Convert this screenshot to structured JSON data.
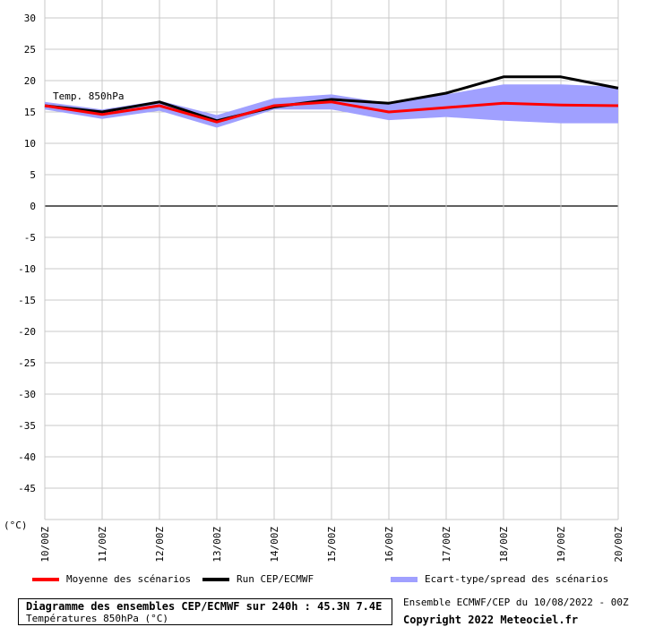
{
  "chart_data": {
    "type": "line",
    "annotation": "Temp. 850hPa",
    "unit_label": "(°C)",
    "y_ticks": [
      30,
      25,
      20,
      15,
      10,
      5,
      0,
      -5,
      -10,
      -15,
      -20,
      -25,
      -30,
      -35,
      -40,
      -45
    ],
    "ylim": [
      -50,
      30
    ],
    "categories": [
      "10/00Z",
      "11/00Z",
      "12/00Z",
      "13/00Z",
      "14/00Z",
      "15/00Z",
      "16/00Z",
      "17/00Z",
      "18/00Z",
      "19/00Z",
      "20/00Z"
    ],
    "series": [
      {
        "name": "Moyenne des scénarios",
        "color": "#ff0000",
        "values": [
          16.0,
          14.6,
          16.0,
          13.4,
          16.0,
          16.6,
          15.0,
          15.7,
          16.4,
          16.1,
          16.0
        ]
      },
      {
        "name": "Run CEP/ECMWF",
        "color": "#000000",
        "values": [
          16.0,
          15.0,
          16.6,
          13.6,
          15.8,
          17.0,
          16.4,
          18.0,
          20.6,
          20.6,
          18.8
        ]
      }
    ],
    "band": {
      "name": "Ecart-type/spread des scénarios",
      "color": "#a0a0ff",
      "upper": [
        16.6,
        15.4,
        16.8,
        14.5,
        17.2,
        17.8,
        16.4,
        17.8,
        19.4,
        19.4,
        19.0
      ],
      "lower": [
        15.4,
        13.9,
        15.2,
        12.5,
        15.4,
        15.4,
        13.7,
        14.2,
        13.6,
        13.2,
        13.2
      ]
    }
  },
  "legend": {
    "mean": "Moyenne des scénarios",
    "run": "Run CEP/ECMWF",
    "spread": "Ecart-type/spread des scénarios"
  },
  "footer": {
    "title": "Diagramme des ensembles CEP/ECMWF sur 240h : 45.3N 7.4E",
    "subtitle": "Températures 850hPa (°C)",
    "ensemble_info": "Ensemble ECMWF/CEP du 10/08/2022 - 00Z",
    "copyright": "Copyright 2022 Meteociel.fr"
  }
}
